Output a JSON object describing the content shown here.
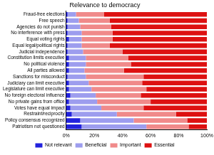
{
  "chart_data": {
    "type": "bar",
    "title": "Relevance to democracy",
    "orientation": "horizontal",
    "stacked": true,
    "grid": false,
    "legend": "bottom",
    "categories": [
      "Fraud-free elections",
      "Free speech",
      "Agencies do not punish",
      "No interference with press",
      "Equal voting rights",
      "Equal legal/political rights",
      "Judicial independence",
      "Constitution limits executive",
      "No political violence",
      "All parties allowed",
      "Sanctions for misconduct",
      "Judiciary can limit executive",
      "Legislature can limit executive",
      "No foreign electoral influence",
      "No private gains from office",
      "Votes have equal impact",
      "Restraint/reciprocity",
      "Policy consensus recognized",
      "Patriotism not questioned"
    ],
    "series": [
      {
        "name": "Not relevant",
        "color": "#2222dd",
        "values": [
          1,
          1,
          1,
          1,
          2,
          1,
          1,
          2,
          2,
          2,
          1,
          2,
          2,
          3,
          2,
          3,
          4,
          10,
          11
        ]
      },
      {
        "name": "Beneficial",
        "color": "#9d9dee",
        "values": [
          6,
          8,
          9,
          10,
          9,
          10,
          11,
          12,
          12,
          11,
          13,
          14,
          16,
          18,
          20,
          22,
          32,
          38,
          46
        ]
      },
      {
        "name": "Important",
        "color": "#f08a8a",
        "values": [
          20,
          22,
          22,
          22,
          22,
          20,
          28,
          30,
          32,
          28,
          41,
          38,
          39,
          32,
          38,
          30,
          42,
          38,
          30
        ]
      },
      {
        "name": "Essential",
        "color": "#dd1111",
        "values": [
          73,
          69,
          68,
          67,
          67,
          69,
          60,
          56,
          54,
          59,
          45,
          46,
          43,
          47,
          40,
          45,
          22,
          14,
          13
        ]
      }
    ],
    "xlim": [
      0,
      100
    ],
    "xticks": [
      {
        "value": 0,
        "label": "0%"
      },
      {
        "value": 20,
        "label": "20%"
      },
      {
        "value": 40,
        "label": "40%"
      },
      {
        "value": 60,
        "label": "60%"
      },
      {
        "value": 80,
        "label": "80%"
      },
      {
        "value": 100,
        "label": "100%"
      }
    ]
  }
}
